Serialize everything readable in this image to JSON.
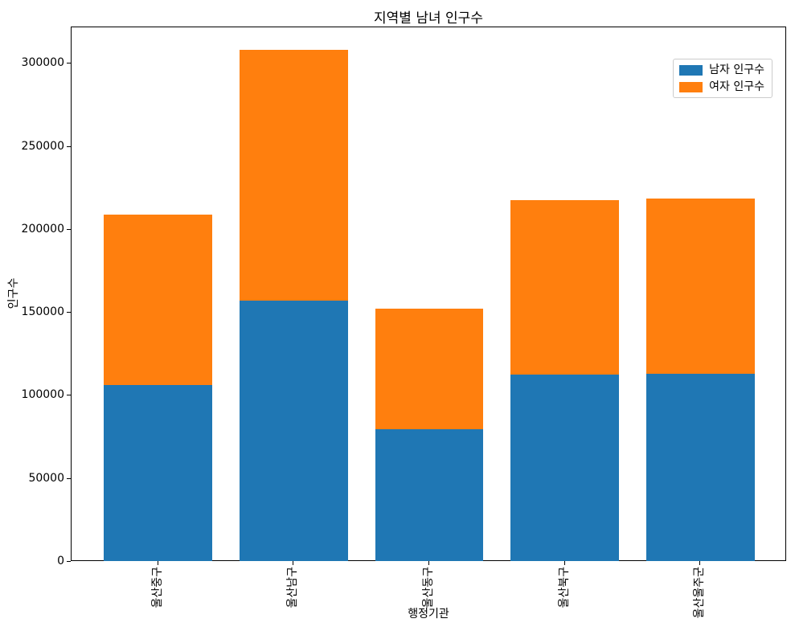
{
  "chart_data": {
    "type": "bar",
    "stacked": true,
    "title": "지역별 남녀 인구수",
    "xlabel": "행정기관",
    "ylabel": "인구수",
    "categories": [
      "울산중구",
      "울산남구",
      "울산동구",
      "울산북구",
      "울산울주군"
    ],
    "series": [
      {
        "name": "남자 인구수",
        "color": "#1f77b4",
        "values": [
          106000,
          157000,
          79500,
          112500,
          113000
        ]
      },
      {
        "name": "여자 인구수",
        "color": "#ff7f0e",
        "values": [
          102500,
          151000,
          72500,
          105000,
          105500
        ]
      }
    ],
    "totals": [
      208500,
      308000,
      152000,
      217500,
      218500
    ],
    "yticks": [
      0,
      50000,
      100000,
      150000,
      200000,
      250000,
      300000
    ],
    "ytick_labels": [
      "0",
      "50000",
      "100000",
      "150000",
      "200000",
      "250000",
      "300000"
    ],
    "ylim": [
      0,
      322000
    ],
    "xtick_rotation": 90,
    "bar_width_fraction": 0.8,
    "grid": false,
    "legend_position": "upper right",
    "background_color": "#ffffff",
    "axis_color": "#000000"
  }
}
